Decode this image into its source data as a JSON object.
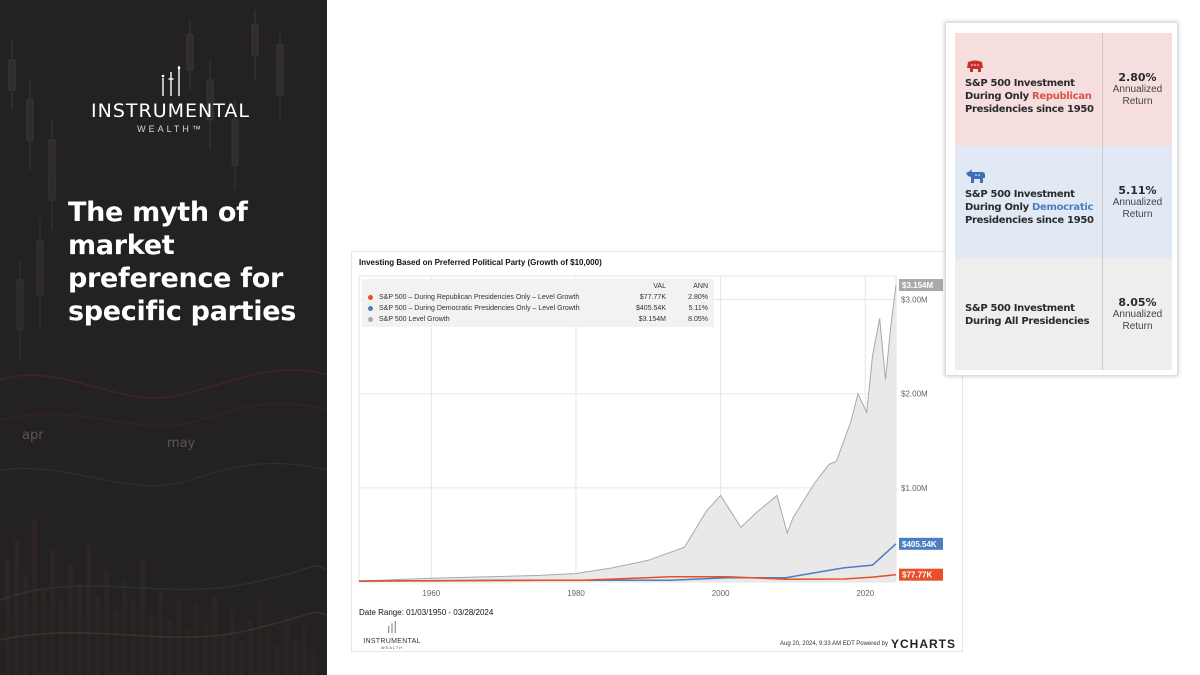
{
  "brand": {
    "name": "INSTRUMENTAL",
    "sub": "WEALTH™"
  },
  "headline": "The myth of market preference for specific parties",
  "bg_labels": {
    "m1": "apr",
    "m2": "may"
  },
  "chart": {
    "title": "Investing Based on Preferred Political Party (Growth of $10,000)",
    "legend_header": {
      "val": "VAL",
      "ann": "ANN"
    },
    "date_range": "Date Range: 01/03/1950 - 03/28/2024",
    "logo": {
      "name": "INSTRUMENTAL",
      "sub": "WEALTH"
    },
    "timestamp": "Aug 20, 2024, 9:33 AM EDT Powered by",
    "powered_brand": "YCHARTS"
  },
  "chart_data": {
    "type": "area",
    "title": "Investing Based on Preferred Political Party (Growth of $10,000)",
    "x_ticks": [
      1960,
      1980,
      2000,
      2020
    ],
    "y_ticks": [
      {
        "value": 1000000,
        "label": "$1.00M"
      },
      {
        "value": 2000000,
        "label": "$2.00M"
      },
      {
        "value": 3000000,
        "label": "$3.00M"
      }
    ],
    "xlim": [
      1950,
      2024.25
    ],
    "ylim": [
      0,
      3250000
    ],
    "grid": true,
    "legend_position": "top-left",
    "series": [
      {
        "name": "S&P 500 – During Republican Presidencies Only – Level Growth",
        "val": "$77.77K",
        "ann": "2.80%",
        "end_label": "$77.77K",
        "color": "#e8502a",
        "kind": "line",
        "x": [
          1950,
          1953,
          1961,
          1969,
          1977,
          1981,
          1993,
          2001,
          2009,
          2017,
          2021,
          2024.25
        ],
        "y": [
          10000,
          10500,
          15000,
          15500,
          18000,
          18000,
          55000,
          55000,
          30000,
          32000,
          52000,
          77770
        ]
      },
      {
        "name": "S&P 500 – During Democratic Presidencies Only – Level Growth",
        "val": "$405.54K",
        "ann": "5.11%",
        "end_label": "$405.54K",
        "color": "#4a7fc1",
        "kind": "line",
        "x": [
          1950,
          1953,
          1961,
          1969,
          1977,
          1981,
          1993,
          2001,
          2009,
          2017,
          2021,
          2024.25
        ],
        "y": [
          10000,
          12000,
          12000,
          18000,
          18000,
          19000,
          19000,
          45000,
          45000,
          150000,
          180000,
          405540
        ]
      },
      {
        "name": "S&P 500 Level Growth",
        "val": "$3.154M",
        "ann": "8.05%",
        "end_label": "$3.154M",
        "color": "#a9a9a9",
        "kind": "area",
        "x": [
          1950,
          1955,
          1960,
          1965,
          1970,
          1975,
          1980,
          1985,
          1990,
          1995,
          1998,
          2000,
          2002.8,
          2005,
          2007.8,
          2009.2,
          2010,
          2013,
          2015,
          2016,
          2018,
          2019,
          2020.2,
          2021,
          2022,
          2022.8,
          2023.5,
          2024.25
        ],
        "y": [
          10000,
          25000,
          40000,
          50000,
          60000,
          70000,
          90000,
          150000,
          230000,
          370000,
          750000,
          920000,
          580000,
          740000,
          920000,
          520000,
          680000,
          1050000,
          1250000,
          1280000,
          1700000,
          2000000,
          1800000,
          2400000,
          2800000,
          2150000,
          2700000,
          3154000
        ]
      }
    ]
  },
  "table": {
    "rows": [
      {
        "icon": "republican-elephant-icon",
        "line1": "S&P 500 Investment",
        "line2a": "During Only ",
        "line2b": "Republican",
        "line3": "Presidencies since 1950",
        "pct": "2.80%",
        "ann1": "Annualized",
        "ann2": "Return",
        "bg": "#f5dedd",
        "accent": "#d9534f"
      },
      {
        "icon": "democrat-donkey-icon",
        "line1": "S&P 500 Investment",
        "line2a": "During Only ",
        "line2b": "Democratic",
        "line3": "Presidencies since 1950",
        "pct": "5.11%",
        "ann1": "Annualized",
        "ann2": "Return",
        "bg": "#e1e9f5",
        "accent": "#4a7fc1"
      },
      {
        "icon": "",
        "line1": "S&P 500 Investment",
        "line2a": "During All Presidencies",
        "line2b": "",
        "line3": "",
        "pct": "8.05%",
        "ann1": "Annualized",
        "ann2": "Return",
        "bg": "#eeeeef",
        "accent": "#333333"
      }
    ]
  }
}
